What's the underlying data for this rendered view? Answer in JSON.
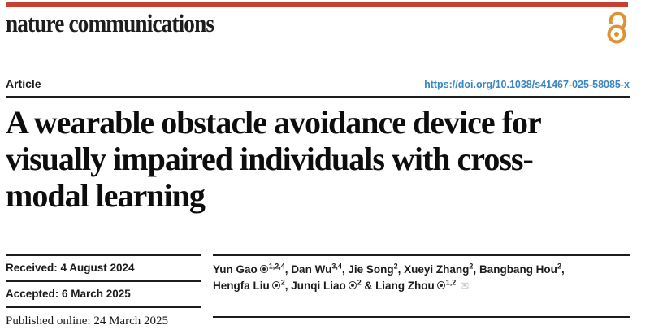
{
  "header": {
    "wordmark": "nature communications",
    "bar_color": "#c6402f",
    "open_access_color": "#dd9234"
  },
  "article_bar": {
    "label": "Article",
    "doi": "https://doi.org/10.1038/s41467-025-58085-x",
    "doi_color": "#3a86c2"
  },
  "title": {
    "full": "A wearable obstacle avoidance device for visually impaired individuals with cross-modal learning",
    "lines": [
      "A wearable obstacle avoidance device for",
      "visually impaired individuals with cross-",
      "modal learning"
    ]
  },
  "dates": {
    "received": "Received: 4 August 2024",
    "accepted": "Accepted: 6 March 2025",
    "published": "Published online: 24 March 2025"
  },
  "authors": {
    "list": [
      {
        "name": "Yun Gao",
        "orcid": true,
        "sup": "1,2,4",
        "sep": ", "
      },
      {
        "name": "Dan Wu",
        "orcid": false,
        "sup": "3,4",
        "sep": ", "
      },
      {
        "name": "Jie Song",
        "orcid": false,
        "sup": "2",
        "sep": ", "
      },
      {
        "name": "Xueyi Zhang",
        "orcid": false,
        "sup": "2",
        "sep": ", "
      },
      {
        "name": "Bangbang Hou",
        "orcid": false,
        "sup": "2",
        "sep": ",",
        "break_after": true
      },
      {
        "name": "Hengfa Liu",
        "orcid": true,
        "sup": "2",
        "sep": ", "
      },
      {
        "name": "Junqi Liao",
        "orcid": true,
        "sup": "2",
        "sep": " & "
      },
      {
        "name": "Liang Zhou",
        "orcid": true,
        "sup": "1,2",
        "sep": "",
        "email": true
      }
    ]
  }
}
